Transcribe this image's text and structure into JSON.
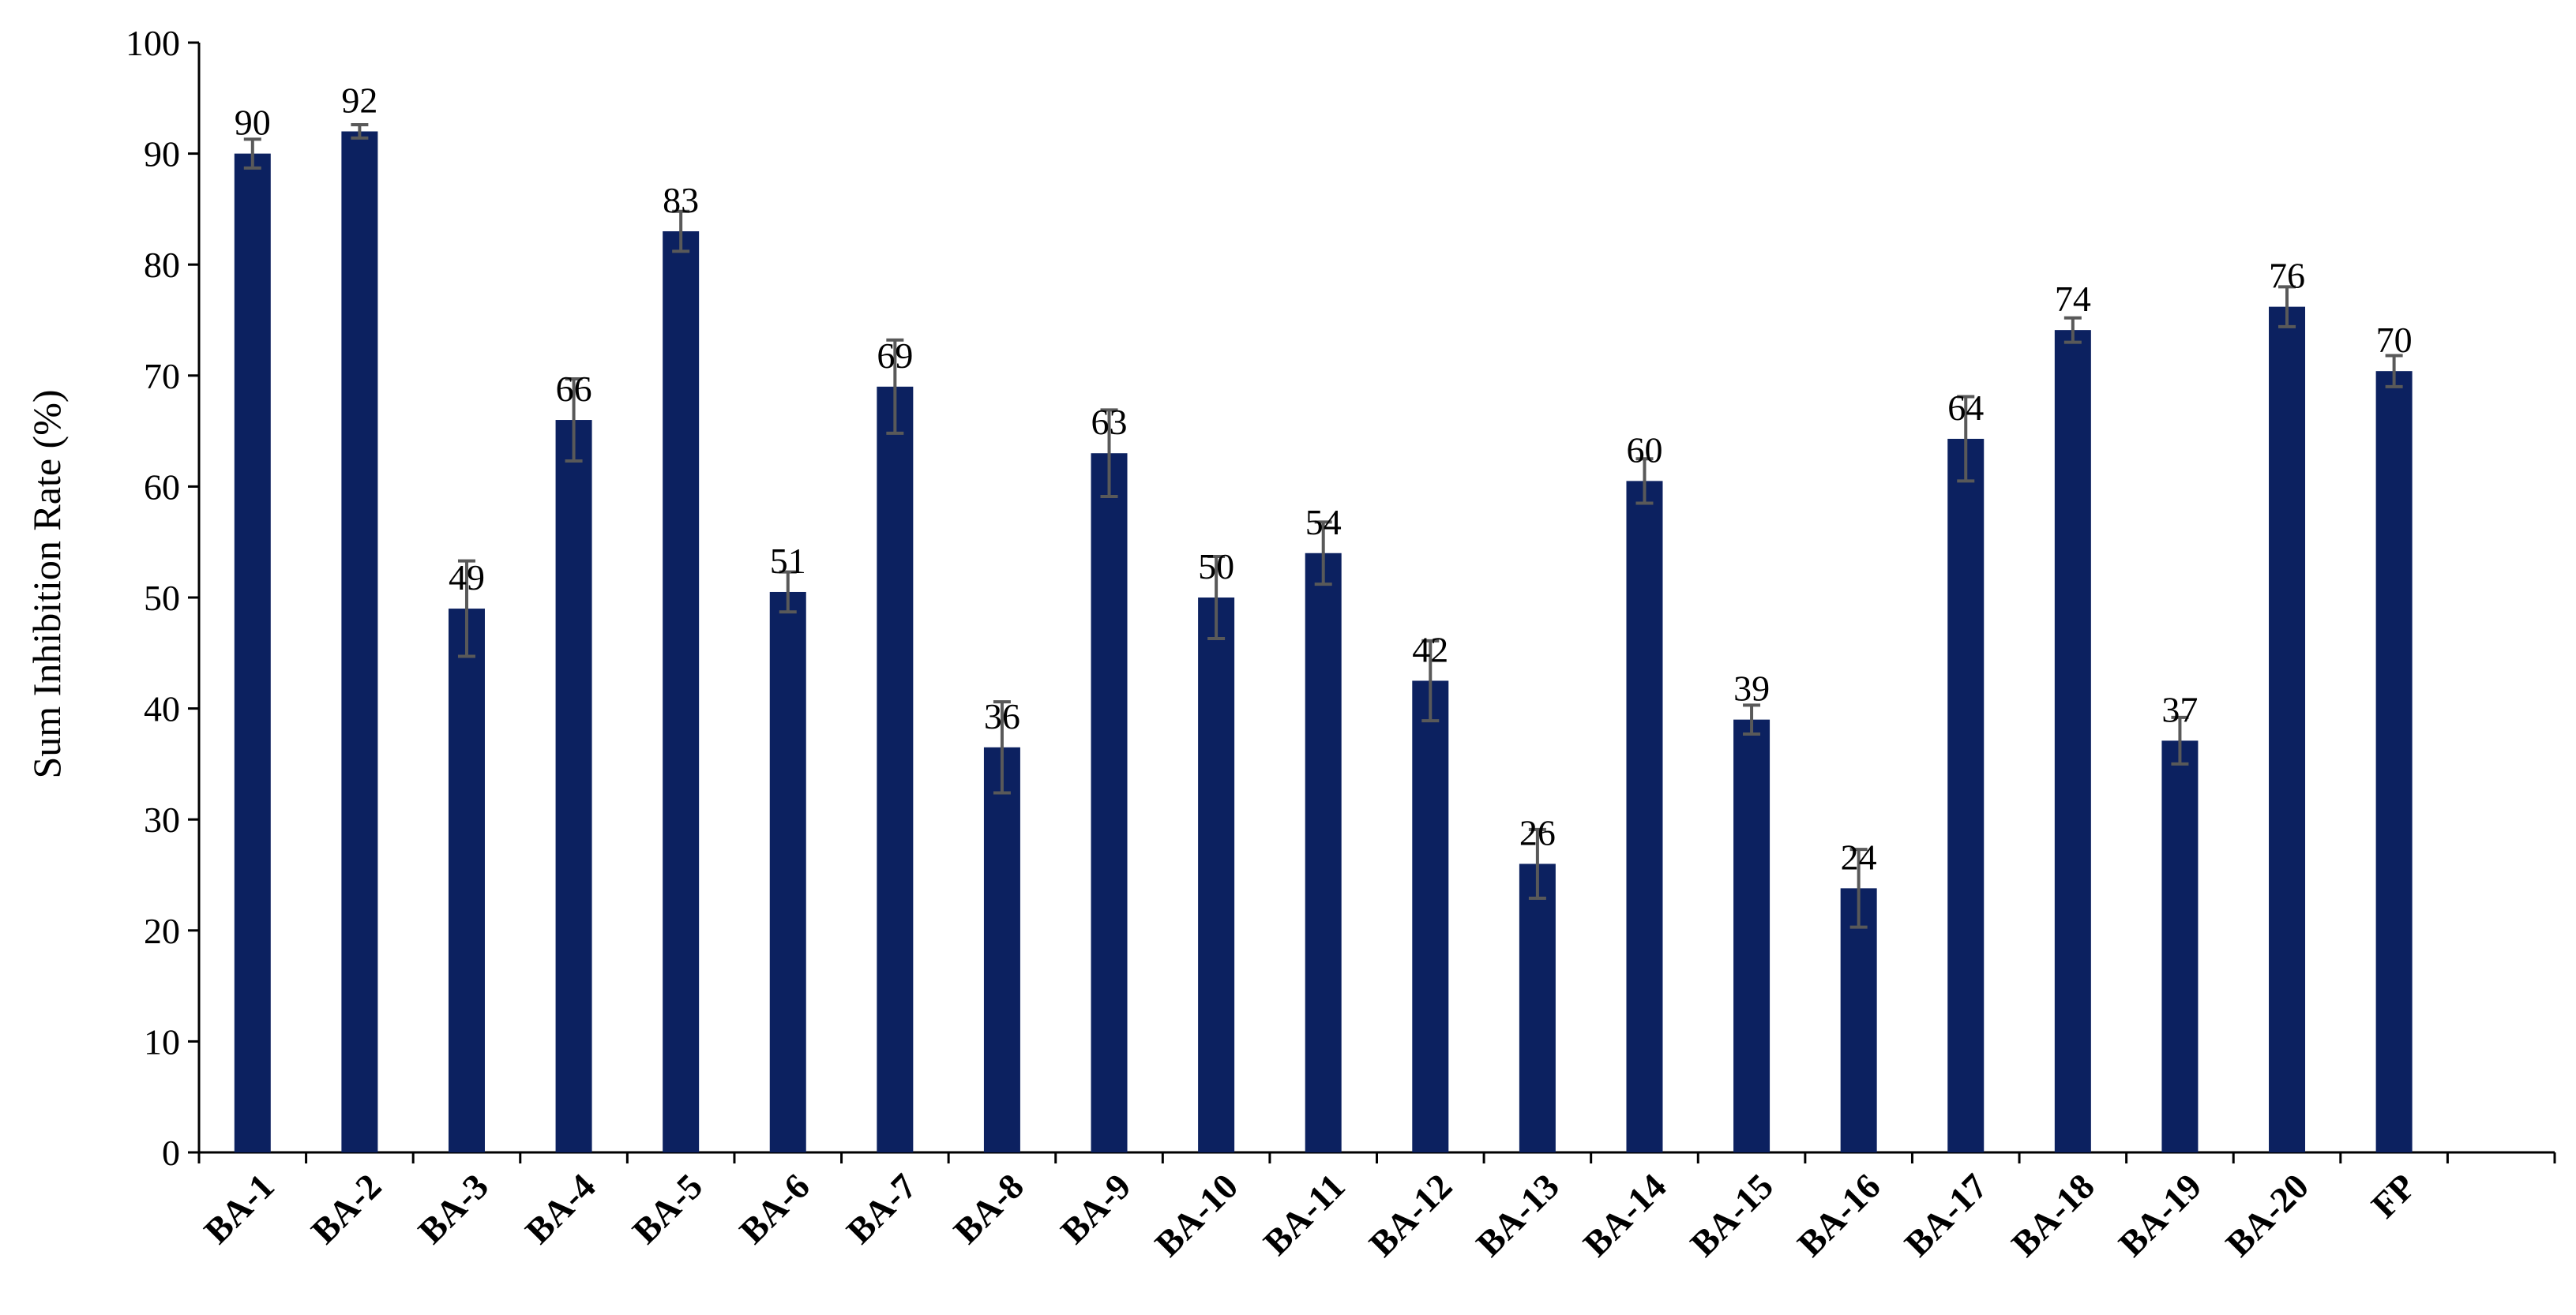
{
  "chart_data": {
    "type": "bar",
    "title": "",
    "xlabel": "",
    "ylabel": "Sum Inhibition Rate (%)",
    "ylim": [
      0,
      100
    ],
    "yticks": [
      0,
      10,
      20,
      30,
      40,
      50,
      60,
      70,
      80,
      90,
      100
    ],
    "grid": false,
    "legend": "none",
    "bar_color": "#0c2160",
    "errorbar_color": "#595959",
    "categories": [
      "BA-1",
      "BA-2",
      "BA-3",
      "BA-4",
      "BA-5",
      "BA-6",
      "BA-7",
      "BA-8",
      "BA-9",
      "BA-10",
      "BA-11",
      "BA-12",
      "BA-13",
      "BA-14",
      "BA-15",
      "BA-16",
      "BA-17",
      "BA-18",
      "BA-19",
      "BA-20",
      "FP"
    ],
    "values": [
      90,
      92,
      49,
      66,
      83,
      50.5,
      69,
      36.5,
      63,
      50,
      54,
      42.5,
      26,
      60.5,
      39,
      23.8,
      64.3,
      74.1,
      37.1,
      76.2,
      70.4
    ],
    "errors": [
      1.3,
      0.6,
      4.3,
      3.7,
      1.8,
      1.8,
      4.2,
      4.1,
      3.9,
      3.7,
      2.8,
      3.6,
      3.1,
      2.0,
      1.3,
      3.5,
      3.8,
      1.1,
      2.1,
      1.8,
      1.4
    ],
    "data_labels": [
      "90",
      "92",
      "49",
      "66",
      "83",
      "51",
      "69",
      "36",
      "63",
      "50",
      "54",
      "42",
      "26",
      "60",
      "39",
      "24",
      "64",
      "74",
      "37",
      "76",
      "70"
    ]
  }
}
